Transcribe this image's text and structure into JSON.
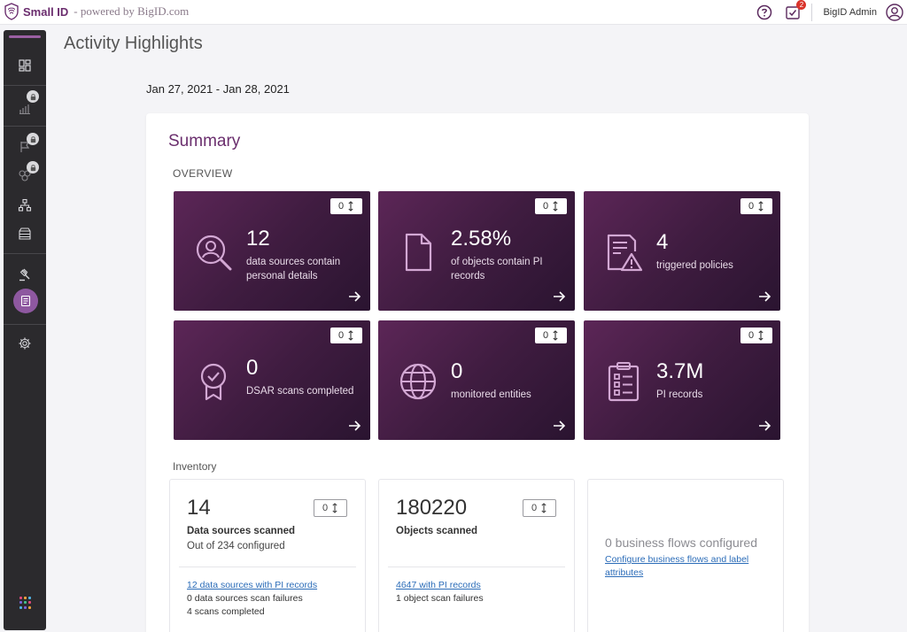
{
  "topbar": {
    "brand": "Small ID",
    "powered_by": "- powered by BigID.com",
    "tasks_badge": "2",
    "user_name": "BigID Admin"
  },
  "sidebar": {
    "items": [
      {
        "icon": "dashboard-icon",
        "locked": false
      },
      {
        "icon": "bar-chart-icon",
        "locked": true
      },
      {
        "icon": "flag-icon",
        "locked": true
      },
      {
        "icon": "clusters-icon",
        "locked": true
      },
      {
        "icon": "org-chart-icon",
        "locked": false
      },
      {
        "icon": "storage-icon",
        "locked": false
      },
      {
        "icon": "gavel-icon",
        "locked": false
      },
      {
        "icon": "report-icon",
        "active": true
      },
      {
        "icon": "gear-icon",
        "locked": false
      }
    ],
    "apps_icon": "apps-grid-icon",
    "accent_color": "#8e58a0"
  },
  "page": {
    "title": "Activity Highlights",
    "date_range": "Jan 27, 2021 - Jan 28, 2021"
  },
  "summary": {
    "title": "Summary",
    "overview_label": "OVERVIEW",
    "tiles": [
      {
        "icon": "person-search-icon",
        "value": "12",
        "description": "data sources contain personal details",
        "counter": "0"
      },
      {
        "icon": "document-icon",
        "value": "2.58%",
        "description": "of objects contain PI records",
        "counter": "0"
      },
      {
        "icon": "policy-alert-icon",
        "value": "4",
        "description": "triggered policies",
        "counter": "0"
      },
      {
        "icon": "certificate-badge-icon",
        "value": "0",
        "description": "DSAR scans completed",
        "counter": "0"
      },
      {
        "icon": "globe-icon",
        "value": "0",
        "description": "monitored entities",
        "counter": "0"
      },
      {
        "icon": "clipboard-list-icon",
        "value": "3.7M",
        "description": "PI records",
        "counter": "0"
      }
    ],
    "inventory_label": "Inventory",
    "inventory": [
      {
        "value": "14",
        "counter": "0",
        "title": "Data sources scanned",
        "subtitle": "Out of 234 configured",
        "link": "12 data sources with PI records",
        "lines": [
          "0 data sources scan failures",
          "4 scans completed"
        ]
      },
      {
        "value": "180220",
        "counter": "0",
        "title": "Objects scanned",
        "link": "4647 with PI records",
        "lines": [
          "1 object scan failures"
        ]
      },
      {
        "empty_title": "0 business flows configured",
        "link": "Configure business flows and label attributes"
      }
    ]
  },
  "colors": {
    "brand": "#6b2d6e",
    "tile_gradient_start": "#5c2657",
    "tile_gradient_end": "#2a1430",
    "link": "#2b6cb8",
    "badge": "#d9342b"
  }
}
